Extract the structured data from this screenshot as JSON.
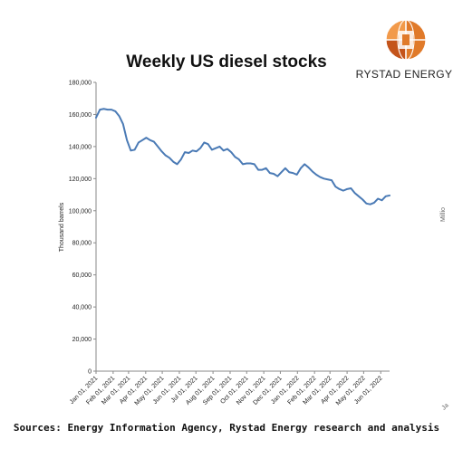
{
  "brand": {
    "name": "RYSTAD ENERGY",
    "accent": "#e07a2a",
    "accent_dark": "#c4541b"
  },
  "footer": {
    "sources": "Sources: Energy Information Agency, Rystad Energy research and analysis"
  },
  "chart_data": {
    "type": "line",
    "title": "Weekly US diesel stocks",
    "ylabel": "Thousand barrels",
    "xlabel": "",
    "ylim": [
      0,
      180000
    ],
    "yticks": [
      0,
      20000,
      40000,
      60000,
      80000,
      100000,
      120000,
      140000,
      160000,
      180000
    ],
    "ytick_labels": [
      "0",
      "20,000",
      "40,000",
      "60,000",
      "80,000",
      "100,000",
      "120,000",
      "140,000",
      "160,000",
      "180,000"
    ],
    "xticks": [
      "Jan 01, 2021",
      "Feb 01, 2021",
      "Mar 01, 2021",
      "Apr 01, 2021",
      "May 01, 2021",
      "Jun 01, 2021",
      "Jul 01, 2021",
      "Aug 01, 2021",
      "Sep 01, 2021",
      "Oct 01, 2021",
      "Nov 01, 2021",
      "Dec 01, 2021",
      "Jan 01, 2022",
      "Feb 01, 2022",
      "Mar 01, 2022",
      "Apr 01, 2022",
      "May 01, 2022",
      "Jun 01, 2022"
    ],
    "grid": false,
    "line_color": "#4a7ab5",
    "series": [
      {
        "x": [
          "2021-01-01",
          "2021-01-08",
          "2021-01-15",
          "2021-01-22",
          "2021-01-29",
          "2021-02-05",
          "2021-02-12",
          "2021-02-19",
          "2021-02-26",
          "2021-03-05",
          "2021-03-12",
          "2021-03-19",
          "2021-03-26",
          "2021-04-02",
          "2021-04-09",
          "2021-04-16",
          "2021-04-23",
          "2021-04-30",
          "2021-05-07",
          "2021-05-14",
          "2021-05-21",
          "2021-05-28",
          "2021-06-04",
          "2021-06-11",
          "2021-06-18",
          "2021-06-25",
          "2021-07-02",
          "2021-07-09",
          "2021-07-16",
          "2021-07-23",
          "2021-07-30",
          "2021-08-06",
          "2021-08-13",
          "2021-08-20",
          "2021-08-27",
          "2021-09-03",
          "2021-09-10",
          "2021-09-17",
          "2021-09-24",
          "2021-10-01",
          "2021-10-08",
          "2021-10-15",
          "2021-10-22",
          "2021-10-29",
          "2021-11-05",
          "2021-11-12",
          "2021-11-19",
          "2021-11-26",
          "2021-12-03",
          "2021-12-10",
          "2021-12-17",
          "2021-12-24",
          "2021-12-31",
          "2022-01-07",
          "2022-01-14",
          "2022-01-21",
          "2022-01-28",
          "2022-02-04",
          "2022-02-11",
          "2022-02-18",
          "2022-02-25",
          "2022-03-04",
          "2022-03-11",
          "2022-03-18",
          "2022-03-25",
          "2022-04-01",
          "2022-04-08",
          "2022-04-15",
          "2022-04-22",
          "2022-04-29",
          "2022-05-06",
          "2022-05-13",
          "2022-05-20",
          "2022-05-27",
          "2022-06-03",
          "2022-06-10",
          "2022-06-17"
        ],
        "values": [
          158000,
          163000,
          163500,
          163000,
          163000,
          162000,
          159000,
          154000,
          144000,
          137500,
          138000,
          142500,
          144000,
          145500,
          144000,
          143000,
          140000,
          137000,
          134500,
          133000,
          130500,
          129000,
          132000,
          136500,
          136000,
          137500,
          137000,
          139000,
          142500,
          141500,
          138000,
          139000,
          140000,
          137500,
          138500,
          136500,
          133500,
          132000,
          129000,
          129500,
          129500,
          129000,
          125500,
          125500,
          126500,
          123500,
          123000,
          121500,
          124000,
          126500,
          124000,
          123500,
          122500,
          126500,
          129000,
          127000,
          124500,
          122500,
          121000,
          120000,
          119500,
          119000,
          115000,
          113500,
          112500,
          113500,
          114000,
          111000,
          109000,
          107000,
          104500,
          104000,
          105000,
          107500,
          106500,
          109000,
          109500
        ]
      }
    ]
  },
  "fragments": {
    "right_axis_mark": "Millio",
    "bottom_right_mark": "Ja"
  }
}
